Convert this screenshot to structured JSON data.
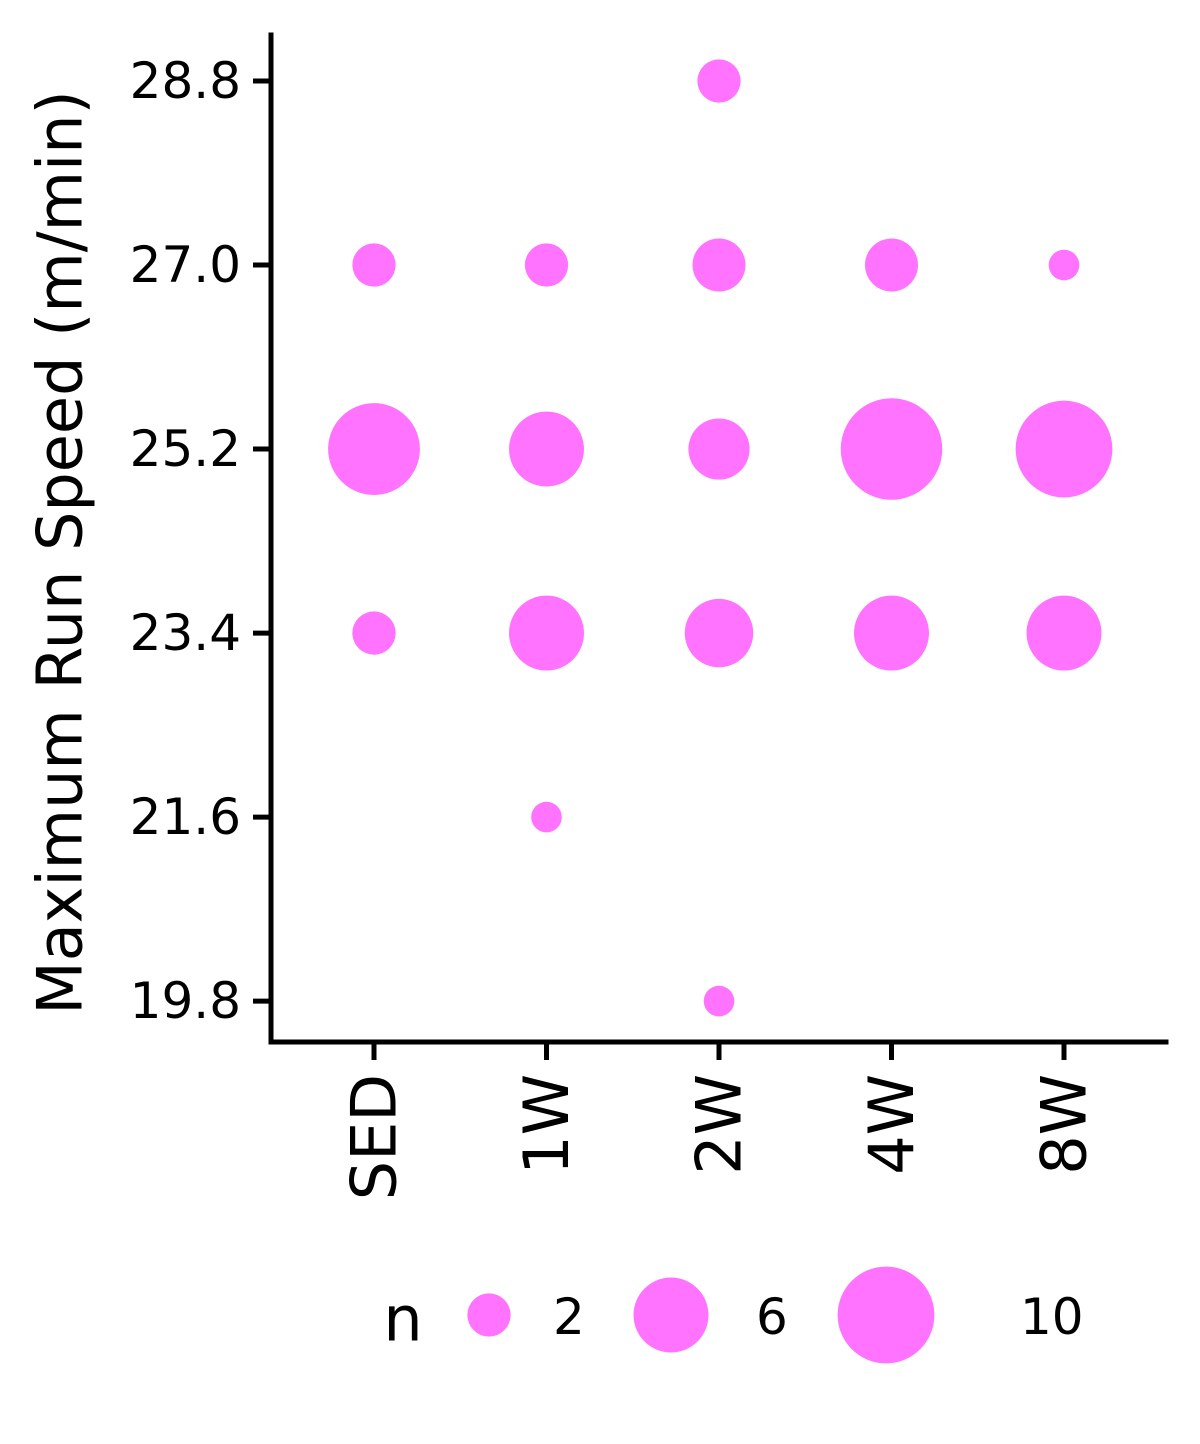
{
  "chart_data": {
    "type": "scatter",
    "subtype": "count-bubble",
    "title": "",
    "xlabel": "",
    "ylabel": "Maximum Run Speed (m/min)",
    "categories": [
      "SED",
      "1W",
      "2W",
      "4W",
      "8W"
    ],
    "y_ticks": [
      "19.8",
      "21.6",
      "23.4",
      "25.2",
      "27.0",
      "28.8"
    ],
    "ylim": [
      19.4,
      29.25
    ],
    "points": [
      {
        "x": "SED",
        "y": 27.0,
        "n": 2
      },
      {
        "x": "SED",
        "y": 25.2,
        "n": 9
      },
      {
        "x": "SED",
        "y": 23.4,
        "n": 2
      },
      {
        "x": "1W",
        "y": 27.0,
        "n": 2
      },
      {
        "x": "1W",
        "y": 25.2,
        "n": 6
      },
      {
        "x": "1W",
        "y": 23.4,
        "n": 6
      },
      {
        "x": "1W",
        "y": 21.6,
        "n": 1
      },
      {
        "x": "2W",
        "y": 28.8,
        "n": 2
      },
      {
        "x": "2W",
        "y": 27.0,
        "n": 3
      },
      {
        "x": "2W",
        "y": 25.2,
        "n": 4
      },
      {
        "x": "2W",
        "y": 23.4,
        "n": 5
      },
      {
        "x": "2W",
        "y": 19.8,
        "n": 1
      },
      {
        "x": "4W",
        "y": 27.0,
        "n": 3
      },
      {
        "x": "4W",
        "y": 25.2,
        "n": 11
      },
      {
        "x": "4W",
        "y": 23.4,
        "n": 6
      },
      {
        "x": "8W",
        "y": 27.0,
        "n": 1
      },
      {
        "x": "8W",
        "y": 25.2,
        "n": 10
      },
      {
        "x": "8W",
        "y": 23.4,
        "n": 6
      }
    ],
    "legend": {
      "title": "n",
      "entries": [
        {
          "label": "2",
          "n": 2
        },
        {
          "label": "6",
          "n": 6
        },
        {
          "label": "10",
          "n": 10
        }
      ],
      "placement": "bottom"
    },
    "point_color": "#ff73ff",
    "axis_color": "#000000",
    "grid": false
  }
}
